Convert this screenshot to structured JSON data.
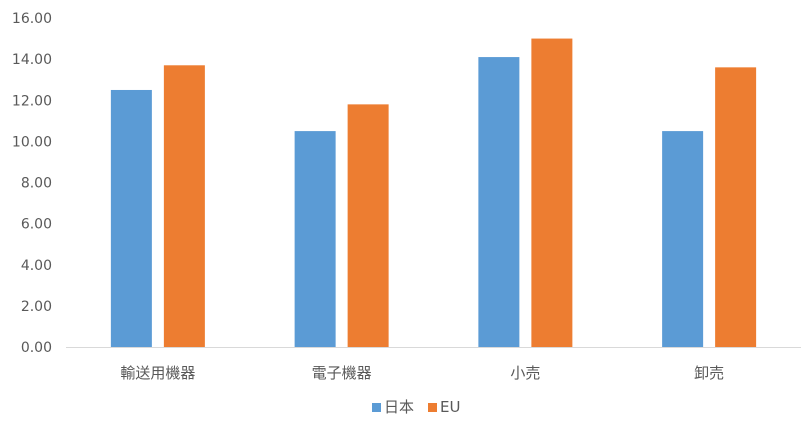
{
  "chart_data": {
    "type": "bar",
    "categories": [
      "輸送用機器",
      "電子機器",
      "小売",
      "卸売"
    ],
    "series": [
      {
        "name": "日本",
        "values": [
          12.5,
          10.5,
          14.1,
          10.5
        ],
        "color": "#5B9BD5"
      },
      {
        "name": "EU",
        "values": [
          13.7,
          11.8,
          15.0,
          13.6
        ],
        "color": "#ED7D31"
      }
    ],
    "ylim": [
      0,
      16
    ],
    "yticks": [
      "0.00",
      "2.00",
      "4.00",
      "6.00",
      "8.00",
      "10.00",
      "12.00",
      "14.00",
      "16.00"
    ],
    "title": "",
    "xlabel": "",
    "ylabel": "",
    "grid": false,
    "legend_position": "bottom-center"
  }
}
